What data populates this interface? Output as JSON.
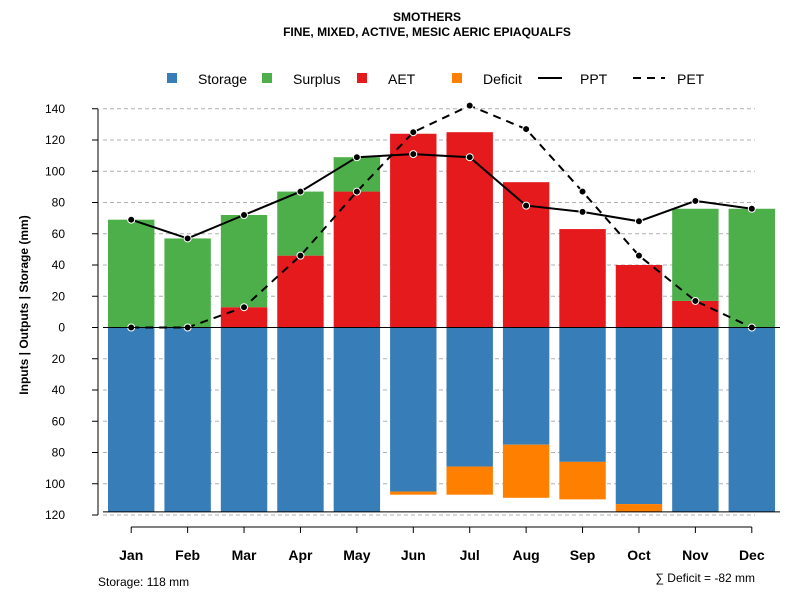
{
  "chart_data": {
    "type": "bar",
    "title": "SMOTHERS",
    "subtitle": "FINE, MIXED, ACTIVE, MESIC AERIC EPIAQUALFS",
    "ylabel": "Inputs | Outputs | Storage    (mm)",
    "ylim": [
      -120,
      145
    ],
    "y_tick_values": [
      140,
      120,
      100,
      80,
      60,
      40,
      20,
      0,
      -20,
      -40,
      -60,
      -80,
      -100,
      -120
    ],
    "y_tick_labels": [
      "140",
      "120",
      "100",
      "80",
      "60",
      "40",
      "20",
      "0",
      "20",
      "40",
      "60",
      "80",
      "100",
      "120"
    ],
    "categories": [
      "Jan",
      "Feb",
      "Mar",
      "Apr",
      "May",
      "Jun",
      "Jul",
      "Aug",
      "Sep",
      "Oct",
      "Nov",
      "Dec"
    ],
    "series": [
      {
        "name": "Storage",
        "color": "#377EB8",
        "values": [
          118,
          118,
          118,
          118,
          118,
          105,
          89,
          75,
          86,
          113,
          118,
          118
        ]
      },
      {
        "name": "Surplus",
        "color": "#4DAF4A",
        "values": [
          69,
          57,
          59,
          41,
          22,
          0,
          0,
          0,
          0,
          0,
          59,
          76
        ]
      },
      {
        "name": "AET",
        "color": "#E41A1C",
        "values": [
          0,
          0,
          13,
          46,
          87,
          124,
          125,
          93,
          63,
          40,
          17,
          0
        ]
      },
      {
        "name": "Deficit",
        "color": "#FF7F00",
        "values": [
          0,
          0,
          0,
          0,
          0,
          2,
          18,
          34,
          24,
          5,
          0,
          0
        ]
      },
      {
        "name": "PPT",
        "color": "#000000",
        "values": [
          69,
          57,
          72,
          87,
          109,
          111,
          109,
          78,
          74,
          68,
          81,
          76
        ]
      },
      {
        "name": "PET",
        "color": "#000000",
        "values": [
          0,
          0,
          13,
          46,
          87,
          125,
          142,
          127,
          87,
          46,
          17,
          0
        ]
      }
    ],
    "legend": {
      "position": "top",
      "entries": [
        {
          "label": "Storage",
          "kind": "square",
          "color": "#377EB8"
        },
        {
          "label": "Surplus",
          "kind": "square",
          "color": "#4DAF4A"
        },
        {
          "label": "AET",
          "kind": "square",
          "color": "#E41A1C"
        },
        {
          "label": "Deficit",
          "kind": "square",
          "color": "#FF7F00"
        },
        {
          "label": "PPT",
          "kind": "solid-line",
          "color": "#000000"
        },
        {
          "label": "PET",
          "kind": "dashed-line",
          "color": "#000000"
        }
      ]
    },
    "grid": true,
    "storage_note": "Storage: 118 mm",
    "deficit_note": "∑ Deficit = -82 mm"
  }
}
